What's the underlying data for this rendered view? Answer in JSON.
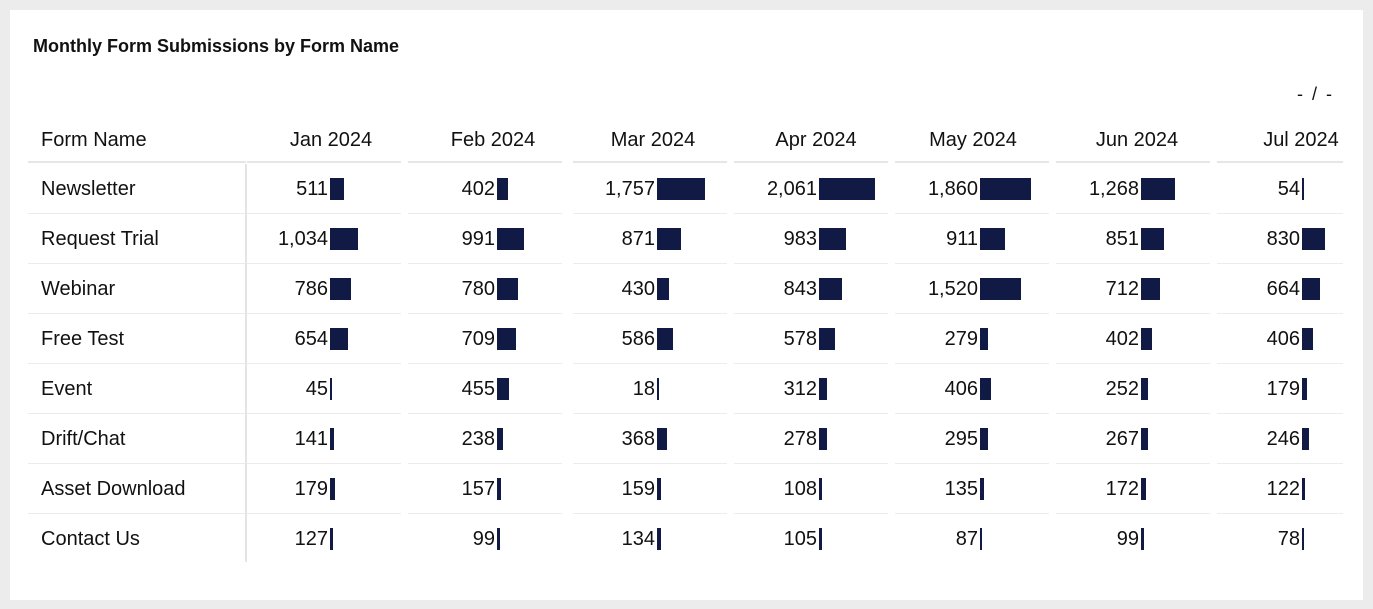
{
  "title": "Monthly Form Submissions by Form Name",
  "pager": "- / -",
  "table": {
    "columns": [
      "Form Name",
      "Jan 2024",
      "Feb 2024",
      "Mar 2024",
      "Apr 2024",
      "May 2024",
      "Jun 2024",
      "Jul 2024"
    ],
    "rows": [
      {
        "label": "Newsletter",
        "values": [
          511,
          402,
          1757,
          2061,
          1860,
          1268,
          54
        ],
        "display": [
          "511",
          "402",
          "1,757",
          "2,061",
          "1,860",
          "1,268",
          "54"
        ]
      },
      {
        "label": "Request Trial",
        "values": [
          1034,
          991,
          871,
          983,
          911,
          851,
          830
        ],
        "display": [
          "1,034",
          "991",
          "871",
          "983",
          "911",
          "851",
          "830"
        ]
      },
      {
        "label": "Webinar",
        "values": [
          786,
          780,
          430,
          843,
          1520,
          712,
          664
        ],
        "display": [
          "786",
          "780",
          "430",
          "843",
          "1,520",
          "712",
          "664"
        ]
      },
      {
        "label": "Free Test",
        "values": [
          654,
          709,
          586,
          578,
          279,
          402,
          406
        ],
        "display": [
          "654",
          "709",
          "586",
          "578",
          "279",
          "402",
          "406"
        ]
      },
      {
        "label": "Event",
        "values": [
          45,
          455,
          18,
          312,
          406,
          252,
          179
        ],
        "display": [
          "45",
          "455",
          "18",
          "312",
          "406",
          "252",
          "179"
        ]
      },
      {
        "label": "Drift/Chat",
        "values": [
          141,
          238,
          368,
          278,
          295,
          267,
          246
        ],
        "display": [
          "141",
          "238",
          "368",
          "278",
          "295",
          "267",
          "246"
        ]
      },
      {
        "label": "Asset Download",
        "values": [
          179,
          157,
          159,
          108,
          135,
          172,
          122
        ],
        "display": [
          "179",
          "157",
          "159",
          "108",
          "135",
          "172",
          "122"
        ]
      },
      {
        "label": "Contact Us",
        "values": [
          127,
          99,
          134,
          105,
          87,
          99,
          78
        ],
        "display": [
          "127",
          "99",
          "134",
          "105",
          "87",
          "99",
          "78"
        ]
      }
    ]
  },
  "colors": {
    "bar": "#111a44",
    "text": "#111111",
    "background": "#ffffff"
  }
}
